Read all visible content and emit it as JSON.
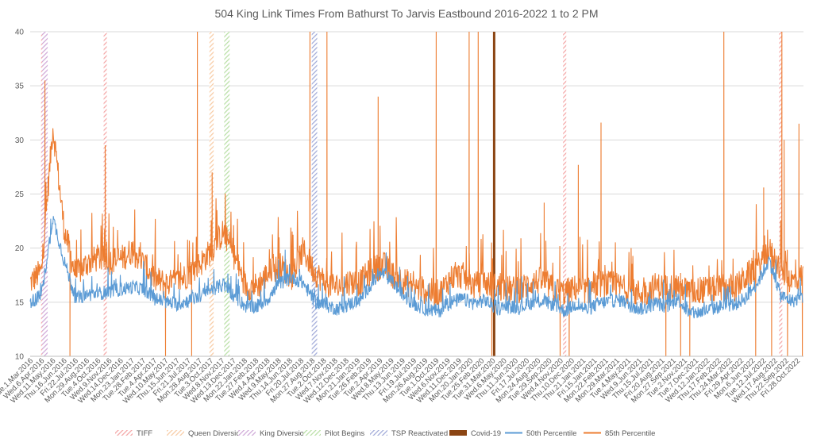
{
  "chart_data": {
    "type": "line",
    "title": "504 King Link Times From Bathurst To Jarvis Eastbound 2016-2022 1 to 2 PM",
    "xlabel": "",
    "ylabel": "",
    "ylim": [
      10,
      40
    ],
    "y_ticks": [
      10,
      15,
      20,
      25,
      30,
      35,
      40
    ],
    "x_tick_labels": [
      "Tue.1.Mar.2016",
      "Wed.6.Apr.2016",
      "Wed.11.May.2016",
      "Thu.16.Jun.2016",
      "Fri.22.Jul.2016",
      "Mon.29.Aug.2016",
      "Tue.4.Oct.2016",
      "Wed.9.Nov.2016",
      "Wed.14.Dec.2016",
      "Mon.23.Jan.2017",
      "Tue.28.Feb.2017",
      "Tue.4.Apr.2017",
      "Wed.10.May.2017",
      "Thu.15.Jun.2017",
      "Fri.21.Jul.2017",
      "Mon.28.Aug.2017",
      "Tue.3.Oct.2017",
      "Wed.8.Nov.2017",
      "Wed.13.Dec.2017",
      "Mon.22.Jan.2018",
      "Tue.27.Feb.2018",
      "Wed.4.Apr.2018",
      "Wed.9.May.2018",
      "Thu.14.Jun.2018",
      "Fri.20.Jul.2018",
      "Mon.27.Aug.2018",
      "Tue.2.Oct.2018",
      "Wed.7.Nov.2018",
      "Wed.12.Dec.2018",
      "Mon.21.Jan.2019",
      "Tue.26.Feb.2019",
      "Tue.2.Apr.2019",
      "Wed.8.May.2019",
      "Thu.13.Jun.2019",
      "Fri.19.Jul.2019",
      "Mon.26.Aug.2019",
      "Tue.1.Oct.2019",
      "Wed.6.Nov.2019",
      "Wed.11.Dec.2019",
      "Mon.20.Jan.2020",
      "Tue.25.Feb.2020",
      "Tue.31.Mar.2020",
      "Wed.6.May.2020",
      "Thu.11.Jun.2020",
      "Fri.17.Jul.2020",
      "Mon.24.Aug.2020",
      "Tue.29.Sep.2020",
      "Wed.4.Nov.2020",
      "Thu.10.Dec.2020",
      "Thu.21.Jan.2021",
      "Fri.15.Jan.2021",
      "Mon.22.Feb.2021",
      "Mon.29.Mar.2021",
      "Tue.4.May.2021",
      "Wed.9.Jun.2021",
      "Thu.15.Jul.2021",
      "Fri.20.Aug.2021",
      "Mon.27.Sep.2021",
      "Tue.2.Nov.2021",
      "Tue.7.Dec.2021",
      "Wed.12.Jan.2022",
      "Thu.17.Feb.2022",
      "Thu.24.Mar.2022",
      "Fri.29.Apr.2022",
      "Mon.6.Jun.2022",
      "Tue.12.Jul.2022",
      "Wed.17.Aug.2022",
      "Thu.22.Sep.2022",
      "Fri.28.Oct.2022"
    ],
    "x_range": [
      0,
      68
    ],
    "series": [
      {
        "name": "50th Percentile",
        "color": "#5b9bd5",
        "values": [
          15.0,
          15.6,
          22.8,
          18.8,
          15.3,
          15.7,
          15.8,
          16.0,
          16.2,
          16.4,
          16.2,
          15.3,
          15.0,
          14.8,
          15.2,
          15.6,
          16.2,
          16.6,
          15.5,
          14.6,
          14.6,
          15.4,
          16.8,
          17.3,
          16.8,
          15.1,
          14.7,
          14.4,
          14.8,
          15.2,
          16.7,
          17.7,
          16.7,
          15.4,
          14.7,
          14.3,
          14.2,
          15.0,
          15.3,
          14.9,
          15.2,
          14.4,
          14.6,
          14.5,
          14.9,
          15.1,
          14.8,
          14.2,
          14.8,
          14.3,
          14.9,
          15.1,
          15.2,
          14.5,
          14.4,
          14.9,
          14.6,
          15.3,
          13.9,
          14.1,
          14.4,
          14.7,
          14.8,
          15.5,
          16.9,
          18.9,
          15.6,
          15.1,
          15.5
        ]
      },
      {
        "name": "85th Percentile",
        "color": "#ed7d31",
        "values": [
          16.8,
          17.9,
          31.2,
          21.7,
          17.5,
          18.6,
          19.1,
          18.8,
          19.0,
          19.8,
          18.5,
          17.1,
          16.7,
          16.9,
          17.7,
          18.6,
          19.9,
          21.5,
          19.1,
          16.4,
          16.5,
          17.8,
          18.3,
          17.4,
          19.8,
          17.8,
          16.8,
          16.4,
          16.9,
          16.8,
          17.9,
          18.5,
          17.4,
          16.9,
          16.3,
          16.0,
          15.8,
          17.3,
          17.5,
          16.5,
          16.8,
          16.4,
          16.2,
          16.1,
          16.8,
          17.0,
          16.2,
          15.9,
          16.3,
          16.0,
          16.7,
          16.6,
          16.4,
          15.9,
          15.8,
          16.5,
          16.3,
          16.6,
          15.9,
          16.1,
          16.2,
          16.4,
          16.3,
          17.4,
          18.3,
          19.8,
          18.0,
          16.9,
          17.5
        ]
      }
    ],
    "event_markers": [
      {
        "name": "TIFF",
        "color": "#f4a6a6",
        "positions": [
          1.1,
          6.6,
          47.0,
          66.0
        ]
      },
      {
        "name": "Queen Diversion",
        "color": "#f8cba4",
        "positions": [
          15.9,
          16.0
        ]
      },
      {
        "name": "King Diversion",
        "color": "#cfa9d8",
        "positions": [
          1.2,
          1.4
        ]
      },
      {
        "name": "Pilot Begins",
        "color": "#b9dfa6",
        "positions": [
          17.2,
          17.4
        ]
      },
      {
        "name": "TSP Reactivated",
        "color": "#9fa9d8",
        "positions": [
          24.9,
          25.1
        ]
      },
      {
        "name": "Covid-19",
        "color": "#8b4513",
        "positions": [
          40.8
        ]
      }
    ],
    "spikes_85th": [
      {
        "x": 1.3,
        "y": 35.5
      },
      {
        "x": 6.6,
        "y": 29.5
      },
      {
        "x": 14.7,
        "y": 40
      },
      {
        "x": 16.0,
        "y": 27.0
      },
      {
        "x": 24.6,
        "y": 40
      },
      {
        "x": 26.1,
        "y": 40
      },
      {
        "x": 30.6,
        "y": 34.0
      },
      {
        "x": 35.7,
        "y": 40
      },
      {
        "x": 38.6,
        "y": 40
      },
      {
        "x": 39.4,
        "y": 40
      },
      {
        "x": 45.2,
        "y": 24.2
      },
      {
        "x": 48.2,
        "y": 27.7
      },
      {
        "x": 50.2,
        "y": 31.6
      },
      {
        "x": 61.0,
        "y": 40
      },
      {
        "x": 64.5,
        "y": 25.6
      },
      {
        "x": 66.1,
        "y": 40
      },
      {
        "x": 66.3,
        "y": 30.0
      },
      {
        "x": 67.6,
        "y": 31.5
      }
    ],
    "dips_85th": [
      {
        "x": 3.5,
        "y": 10
      },
      {
        "x": 11.9,
        "y": 10
      },
      {
        "x": 14.2,
        "y": 10
      },
      {
        "x": 40.6,
        "y": 10
      },
      {
        "x": 46.6,
        "y": 10
      },
      {
        "x": 47.4,
        "y": 10
      },
      {
        "x": 55.9,
        "y": 10
      },
      {
        "x": 57.2,
        "y": 10
      },
      {
        "x": 58.0,
        "y": 10
      },
      {
        "x": 63.8,
        "y": 10
      },
      {
        "x": 65.2,
        "y": 10
      },
      {
        "x": 66.6,
        "y": 10
      },
      {
        "x": 67.9,
        "y": 10
      }
    ],
    "legend": [
      {
        "name": "TIFF",
        "kind": "hatched",
        "color": "#f4a6a6"
      },
      {
        "name": "Queen Diversion",
        "kind": "hatched",
        "color": "#f8cba4"
      },
      {
        "name": "King Diversion",
        "kind": "hatched",
        "color": "#cfa9d8"
      },
      {
        "name": "Pilot Begins",
        "kind": "hatched",
        "color": "#b9dfa6"
      },
      {
        "name": "TSP Reactivated",
        "kind": "hatched",
        "color": "#9fa9d8"
      },
      {
        "name": "Covid-19",
        "kind": "solid",
        "color": "#8b4513"
      },
      {
        "name": "50th Percentile",
        "kind": "line",
        "color": "#5b9bd5"
      },
      {
        "name": "85th Percentile",
        "kind": "line",
        "color": "#ed7d31"
      }
    ],
    "legend_position": "bottom",
    "grid": true
  }
}
